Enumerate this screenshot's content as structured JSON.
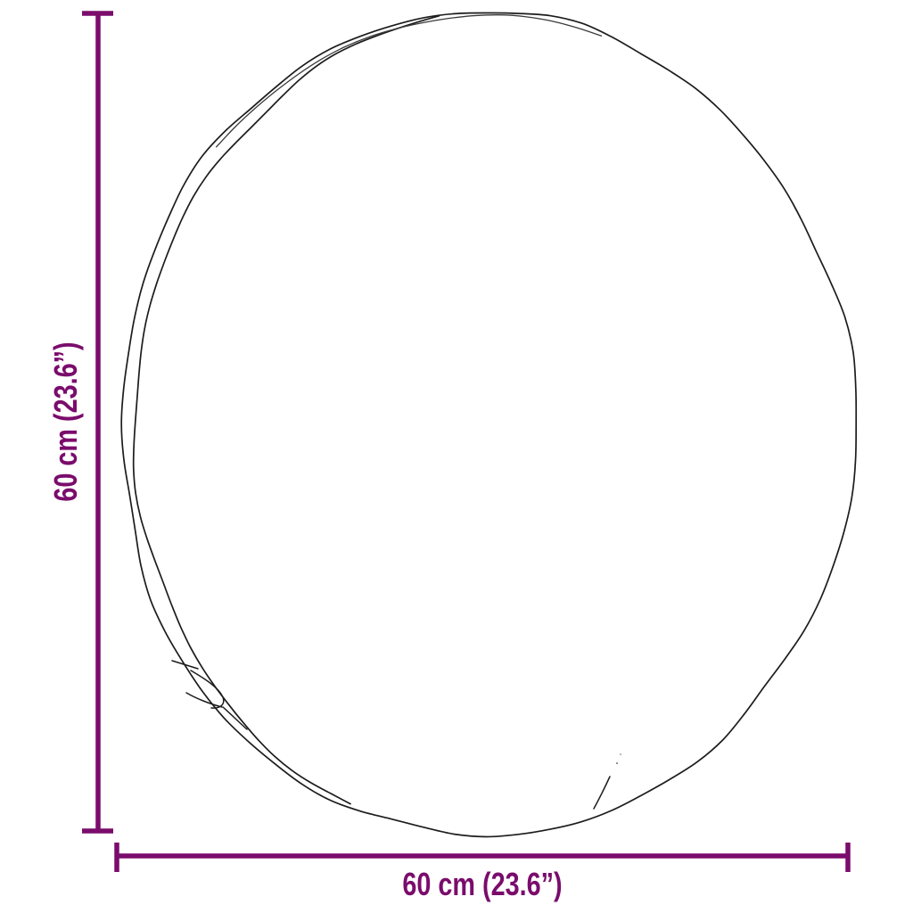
{
  "figure": {
    "type": "product-dimension-diagram",
    "subject": "round item outline drawing"
  },
  "dimensions": {
    "height": {
      "label": "60 cm (23.6”)"
    },
    "width": {
      "label": "60 cm (23.6”)"
    }
  },
  "colors": {
    "dimension": "#7A0C6C",
    "outline": "#1c1c1c",
    "background": "#ffffff"
  }
}
